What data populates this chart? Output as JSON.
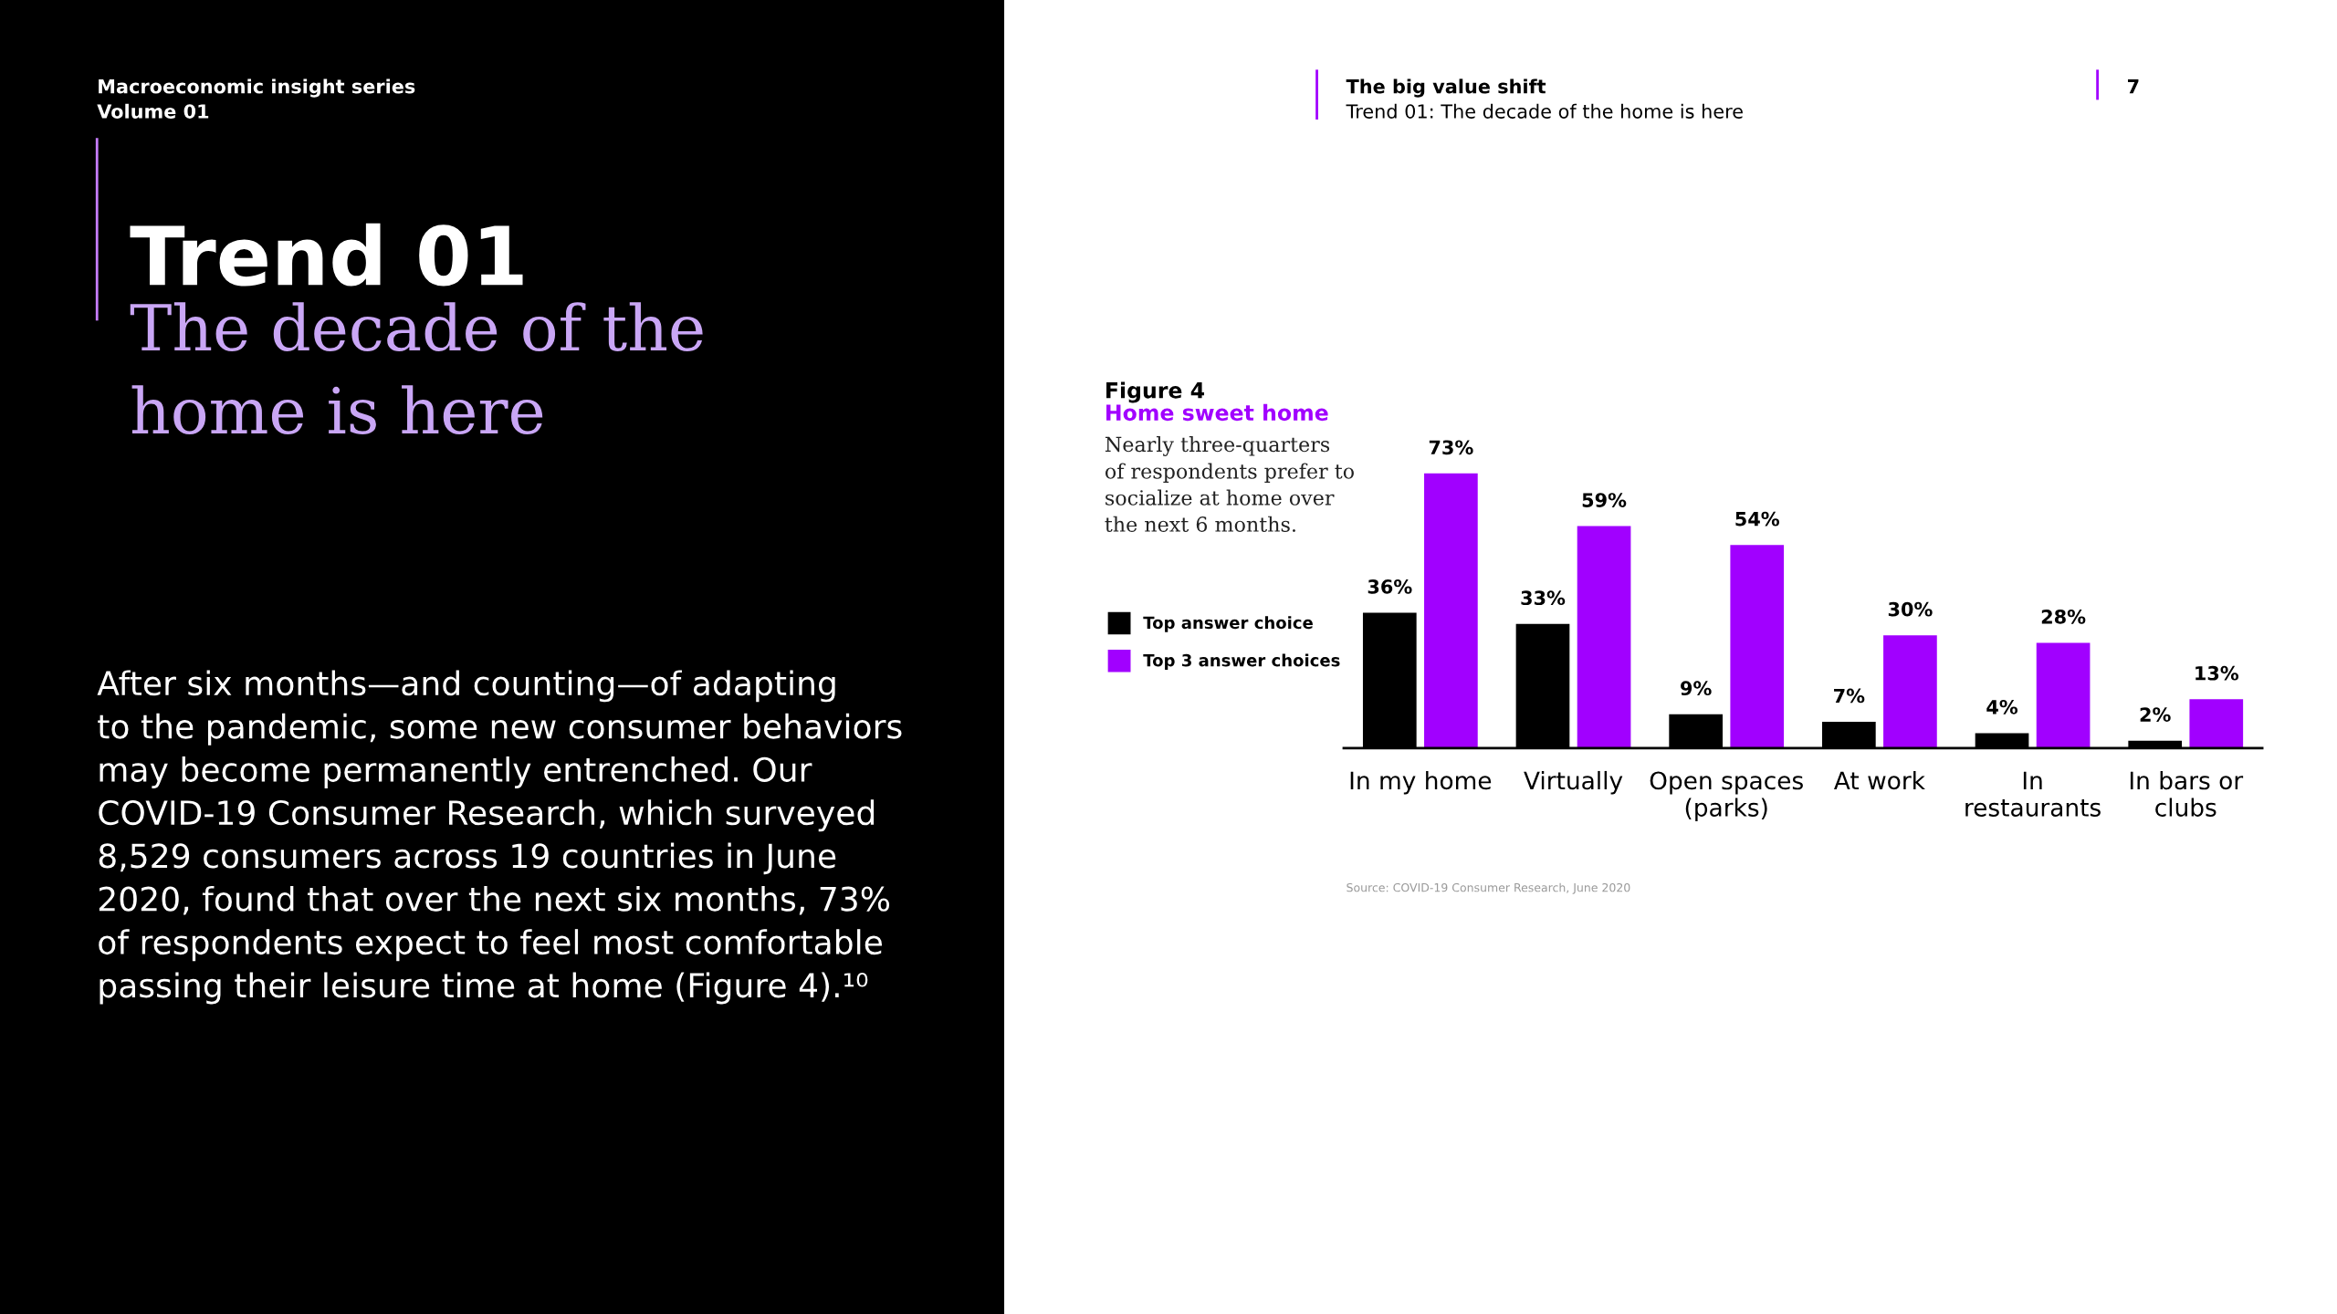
{
  "chart_data": {
    "type": "bar",
    "title": "Figure 4",
    "subtitle": "Home sweet home",
    "categories": [
      "In my home",
      "Virtually",
      "Open spaces\n(parks)",
      "At work",
      "In\nrestaurants",
      "In bars or\nclubs"
    ],
    "series": [
      {
        "name": "Top answer choice",
        "color": "#000000",
        "values": [
          36,
          33,
          9,
          7,
          4,
          2
        ],
        "value_labels": [
          "36%",
          "33%",
          "9%",
          "7%",
          "4%",
          "2%"
        ]
      },
      {
        "name": "Top 3 answer choices",
        "color": "#a100ff",
        "values": [
          73,
          59,
          54,
          30,
          28,
          13
        ],
        "value_labels": [
          "73%",
          "59%",
          "54%",
          "30%",
          "28%",
          "13%"
        ]
      }
    ],
    "legend": "left",
    "grid": false,
    "annotations": [
      "Macroeconomic insight series",
      "Volume 01",
      "Trend 01",
      "The decade of the\nhome is here",
      "After six months—and counting—of adapting\nto the pandemic, some new consumer behaviors\nmay become permanently entrenched. Our\nCOVID-19 Consumer Research, which surveyed\n8,529 consumers across 19 countries in June\n2020, found that over the next six months, 73%\nof respondents expect to feel most comfortable\npassing their leisure time at home (Figure 4).¹⁰",
      "The big value shift",
      "Trend 01: The decade of the home is here",
      "7",
      "Nearly three-quarters\nof respondents prefer to\nsocialize at home over\nthe next 6 months.",
      "Source: COVID-19 Consumer Research, June 2020"
    ]
  }
}
